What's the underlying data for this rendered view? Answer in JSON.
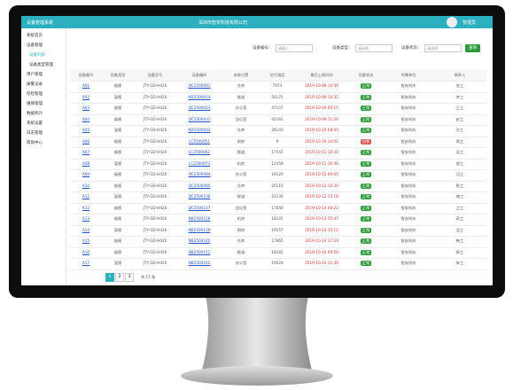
{
  "header": {
    "title": "设备管理系统",
    "company": "深圳市智安科技有限公司",
    "user": "管理员"
  },
  "sidebar": {
    "items": [
      "系统首页",
      "设备管理",
      "设备列表",
      "设备类型管理",
      "用户管理",
      "报警记录",
      "巡检管理",
      "维保管理",
      "数据统计",
      "系统设置",
      "日志管理",
      "帮助中心"
    ]
  },
  "filters": {
    "labels": [
      "设备编号：",
      "设备类型：",
      "设备状态："
    ],
    "placeholders": [
      "请输入",
      "请选择",
      "请选择"
    ],
    "button": "查询"
  },
  "table": {
    "columns": [
      "设备编号",
      "设备类型",
      "设备型号",
      "设备编码",
      "安装位置",
      "信号强度",
      "最后上报时间",
      "设备状态",
      "所属单位",
      "联系人"
    ],
    "rows": [
      [
        "A01",
        "烟感",
        "JTY-GD-H420",
        "QC2500001",
        "仓库",
        "7973",
        "2019-10-08 10:30",
        "正常",
        "智安科技",
        "张工"
      ],
      [
        "A02",
        "温感",
        "JTY-GD-H420",
        "MZ2500014",
        "楼道",
        "56175",
        "2019-10-08 10:32",
        "正常",
        "智安科技",
        "李工"
      ],
      [
        "A03",
        "烟感",
        "JTY-GD-H420",
        "QC2500023",
        "办公室",
        "47147",
        "2019-10-09 09:15",
        "正常",
        "智安科技",
        "王工"
      ],
      [
        "A04",
        "烟感",
        "JTY-GD-H420",
        "QC2500031",
        "会议室",
        "42161",
        "2019-10-09 11:20",
        "正常",
        "智安科技",
        "赵工"
      ],
      [
        "A05",
        "温感",
        "JTY-GD-H420",
        "MZ2500042",
        "仓库",
        "36143",
        "2019-10-10 08:45",
        "正常",
        "智安科技",
        "孙工"
      ],
      [
        "A06",
        "烟感",
        "JTY-GD-H420",
        "LC2500051",
        "厨房",
        "9",
        "2019-10-10 14:02",
        "告警",
        "智安科技",
        "周工"
      ],
      [
        "A07",
        "烟感",
        "JTY-GD-H420",
        "LC2500062",
        "楼道",
        "17542",
        "2019-10-11 10:30",
        "正常",
        "智安科技",
        "吴工"
      ],
      [
        "A08",
        "温感",
        "JTY-GD-H420",
        "LC2500073",
        "机房",
        "12458",
        "2019-10-11 16:40",
        "正常",
        "智安科技",
        "郑工"
      ],
      [
        "A09",
        "烟感",
        "JTY-GD-H420",
        "QC2500084",
        "办公室",
        "19120",
        "2019-10-12 09:05",
        "正常",
        "智安科技",
        "冯工"
      ],
      [
        "A10",
        "烟感",
        "JTY-GD-H420",
        "QC2500095",
        "仓库",
        "20110",
        "2019-10-12 10:30",
        "正常",
        "智安科技",
        "陈工"
      ],
      [
        "A11",
        "温感",
        "JTY-GD-H420",
        "QC2500106",
        "楼道",
        "23130",
        "2019-10-12 13:18",
        "正常",
        "智安科技",
        "褚工"
      ],
      [
        "A12",
        "烟感",
        "JTY-GD-H420",
        "QC2500117",
        "会议室",
        "17640",
        "2019-10-13 08:22",
        "正常",
        "智安科技",
        "卫工"
      ],
      [
        "A13",
        "烟感",
        "JTY-GD-H420",
        "NB2500128",
        "机房",
        "18101",
        "2019-10-13 15:47",
        "正常",
        "智安科技",
        "蒋工"
      ],
      [
        "A14",
        "温感",
        "JTY-GD-H420",
        "NB2500139",
        "厨房",
        "19157",
        "2019-10-14 10:11",
        "正常",
        "智安科技",
        "沈工"
      ],
      [
        "A15",
        "烟感",
        "JTY-GD-H420",
        "NB2500140",
        "仓库",
        "17865",
        "2019-10-14 17:29",
        "正常",
        "智安科技",
        "韩工"
      ],
      [
        "A16",
        "烟感",
        "JTY-GD-H420",
        "NB2500151",
        "楼道",
        "18182",
        "2019-10-15 09:50",
        "正常",
        "智安科技",
        "杨工"
      ],
      [
        "A17",
        "温感",
        "JTY-GD-H420",
        "NB2500162",
        "办公室",
        "19024",
        "2019-10-15 11:36",
        "正常",
        "智安科技",
        "朱工"
      ]
    ]
  },
  "pagination": {
    "pages": [
      "1",
      "2",
      "3"
    ],
    "summary": "共 17 条"
  }
}
